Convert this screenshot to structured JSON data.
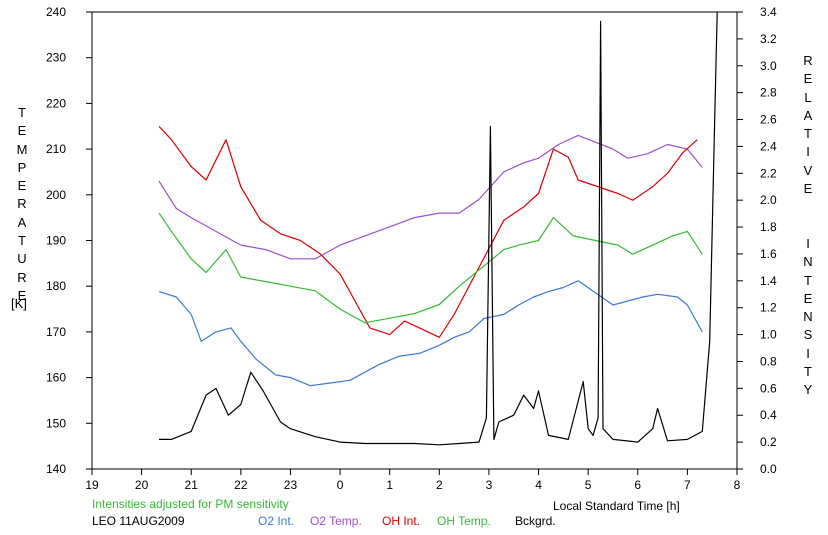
{
  "chart_data": {
    "type": "line",
    "station": "LEO 11AUG2009",
    "note": "Intensities adjusted for PM sensitivity",
    "xlabel": "Local Standard Time [h]",
    "ylabel_left": "TEMPERATURE",
    "ylabel_left_unit": "[K]",
    "ylabel_right": "RELATIVE  INTENSITY",
    "x_ticks": [
      "19",
      "20",
      "21",
      "22",
      "23",
      "0",
      "1",
      "2",
      "3",
      "4",
      "5",
      "6",
      "7",
      "8"
    ],
    "xlim_hours_after_19": [
      0,
      13
    ],
    "y_left_ticks": [
      140,
      150,
      160,
      170,
      180,
      190,
      200,
      210,
      220,
      230,
      240
    ],
    "y_left_lim": [
      140,
      240
    ],
    "y_right_ticks": [
      "0.0",
      "0.2",
      "0.4",
      "0.6",
      "0.8",
      "1.0",
      "1.2",
      "1.4",
      "1.6",
      "1.8",
      "2.0",
      "2.2",
      "2.4",
      "2.6",
      "2.8",
      "3.0",
      "3.2",
      "3.4"
    ],
    "y_right_lim": [
      0,
      3.4
    ],
    "colors": {
      "O2 Int.": "#3c78d8",
      "O2 Temp.": "#9a4fd0",
      "OH Int.": "#dd0000",
      "OH Temp.": "#33bb33",
      "Bckgrd.": "#000000",
      "note": "#33bb33"
    },
    "series": [
      {
        "name": "O2 Int.",
        "axis": "right",
        "x": [
          20.35,
          20.7,
          21.0,
          21.2,
          21.5,
          21.8,
          22.0,
          22.3,
          22.7,
          23.0,
          23.4,
          23.8,
          0.2,
          0.5,
          0.8,
          1.2,
          1.6,
          2.0,
          2.3,
          2.6,
          2.9,
          3.3,
          3.6,
          3.9,
          4.2,
          4.5,
          4.8,
          5.5,
          5.8,
          6.1,
          6.4,
          6.8,
          7.0,
          7.3
        ],
        "y": [
          1.32,
          1.28,
          1.15,
          0.95,
          1.02,
          1.05,
          0.95,
          0.82,
          0.7,
          0.68,
          0.62,
          0.64,
          0.66,
          0.72,
          0.78,
          0.84,
          0.86,
          0.92,
          0.98,
          1.02,
          1.12,
          1.15,
          1.22,
          1.28,
          1.32,
          1.35,
          1.4,
          1.22,
          1.25,
          1.28,
          1.3,
          1.28,
          1.22,
          1.02
        ]
      },
      {
        "name": "O2 Temp.",
        "axis": "left",
        "x": [
          20.35,
          20.7,
          21.0,
          21.5,
          22.0,
          22.5,
          23.0,
          23.5,
          0.0,
          0.5,
          1.0,
          1.5,
          2.0,
          2.4,
          2.8,
          3.3,
          3.7,
          4.0,
          4.4,
          4.8,
          5.5,
          5.8,
          6.2,
          6.6,
          7.0,
          7.3
        ],
        "y": [
          203,
          197,
          195,
          192,
          189,
          188,
          186,
          186,
          189,
          191,
          193,
          195,
          196,
          196,
          199,
          205,
          207,
          208,
          211,
          213,
          210,
          208,
          209,
          211,
          210,
          206
        ]
      },
      {
        "name": "OH Int.",
        "axis": "right",
        "x": [
          20.35,
          20.6,
          21.0,
          21.3,
          21.7,
          22.0,
          22.4,
          22.8,
          23.2,
          23.6,
          0.0,
          0.3,
          0.6,
          1.0,
          1.3,
          1.6,
          2.0,
          2.3,
          3.3,
          3.7,
          4.0,
          4.3,
          4.6,
          4.8,
          5.6,
          5.9,
          6.3,
          6.6,
          6.9,
          7.2
        ],
        "y": [
          2.55,
          2.45,
          2.25,
          2.15,
          2.45,
          2.1,
          1.85,
          1.75,
          1.7,
          1.6,
          1.45,
          1.25,
          1.05,
          1.0,
          1.1,
          1.05,
          0.98,
          1.15,
          1.85,
          1.95,
          2.05,
          2.38,
          2.32,
          2.15,
          2.05,
          2.0,
          2.1,
          2.2,
          2.35,
          2.45
        ]
      },
      {
        "name": "OH Temp.",
        "axis": "left",
        "x": [
          20.35,
          20.6,
          21.0,
          21.3,
          21.7,
          22.0,
          22.5,
          23.0,
          23.5,
          0.0,
          0.5,
          1.0,
          1.5,
          2.0,
          2.4,
          3.3,
          3.6,
          4.0,
          4.3,
          4.7,
          5.6,
          5.9,
          6.3,
          6.7,
          7.0,
          7.3
        ],
        "y": [
          196,
          192,
          186,
          183,
          188,
          182,
          181,
          180,
          179,
          175,
          172,
          173,
          174,
          176,
          180,
          188,
          189,
          190,
          195,
          191,
          189,
          187,
          189,
          191,
          192,
          187
        ]
      },
      {
        "name": "Bckgrd.",
        "axis": "right",
        "x": [
          20.35,
          20.6,
          21.0,
          21.3,
          21.5,
          21.75,
          22.0,
          22.2,
          22.45,
          22.8,
          23.0,
          23.5,
          0.0,
          0.5,
          1.0,
          1.5,
          2.0,
          2.4,
          2.8,
          2.95,
          3.03,
          3.1,
          3.2,
          3.5,
          3.7,
          3.9,
          4.0,
          4.2,
          4.6,
          4.9,
          5.0,
          5.1,
          5.2,
          5.25,
          5.3,
          5.5,
          6.0,
          6.3,
          6.4,
          6.6,
          7.0,
          7.3,
          7.45,
          7.55,
          7.6
        ],
        "y": [
          0.22,
          0.22,
          0.28,
          0.55,
          0.6,
          0.4,
          0.48,
          0.72,
          0.58,
          0.35,
          0.3,
          0.24,
          0.2,
          0.19,
          0.19,
          0.19,
          0.18,
          0.19,
          0.2,
          0.38,
          2.55,
          0.22,
          0.35,
          0.4,
          0.55,
          0.45,
          0.58,
          0.25,
          0.22,
          0.65,
          0.3,
          0.25,
          0.38,
          3.33,
          0.3,
          0.22,
          0.2,
          0.3,
          0.45,
          0.21,
          0.22,
          0.28,
          0.95,
          2.6,
          3.4
        ]
      }
    ]
  }
}
